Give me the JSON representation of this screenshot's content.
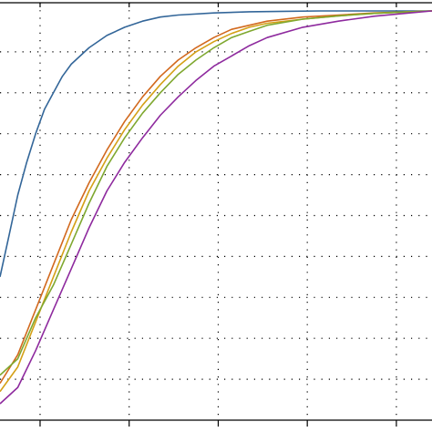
{
  "chart_data": {
    "type": "line",
    "title": "",
    "xlabel": "",
    "ylabel": "",
    "grid": true,
    "grid_style": "dotted",
    "xlim": [
      0,
      4.85
    ],
    "ylim": [
      0,
      1.02
    ],
    "x_ticks": [
      0.45,
      1.45,
      2.45,
      3.45,
      4.45
    ],
    "y_ticks": [
      0.1,
      0.2,
      0.3,
      0.4,
      0.5,
      0.6,
      0.7,
      0.8,
      0.9
    ],
    "series": [
      {
        "color": "#336699",
        "x": [
          0,
          0.1,
          0.2,
          0.3,
          0.4,
          0.5,
          0.6,
          0.7,
          0.8,
          1.0,
          1.2,
          1.4,
          1.6,
          1.8,
          2.0,
          2.4,
          2.8,
          3.2,
          3.6,
          4.0,
          4.5,
          4.85
        ],
        "y": [
          0.35,
          0.45,
          0.55,
          0.63,
          0.7,
          0.76,
          0.8,
          0.84,
          0.87,
          0.91,
          0.94,
          0.96,
          0.975,
          0.985,
          0.99,
          0.995,
          0.998,
          0.999,
          1.0,
          1.0,
          1.0,
          1.0
        ]
      },
      {
        "color": "#d2691e",
        "x": [
          0,
          0.2,
          0.4,
          0.6,
          0.8,
          1.0,
          1.2,
          1.4,
          1.6,
          1.8,
          2.0,
          2.2,
          2.4,
          2.6,
          2.8,
          3.0,
          3.4,
          3.8,
          4.2,
          4.6,
          4.85
        ],
        "y": [
          0.09,
          0.16,
          0.27,
          0.38,
          0.49,
          0.58,
          0.66,
          0.73,
          0.79,
          0.84,
          0.88,
          0.91,
          0.935,
          0.955,
          0.965,
          0.975,
          0.985,
          0.99,
          0.995,
          0.998,
          1.0
        ]
      },
      {
        "color": "#d4a017",
        "x": [
          0,
          0.2,
          0.4,
          0.6,
          0.8,
          1.0,
          1.2,
          1.4,
          1.6,
          1.8,
          2.0,
          2.2,
          2.4,
          2.6,
          2.8,
          3.0,
          3.4,
          3.8,
          4.2,
          4.6,
          4.85
        ],
        "y": [
          0.07,
          0.13,
          0.24,
          0.35,
          0.46,
          0.56,
          0.64,
          0.71,
          0.77,
          0.82,
          0.865,
          0.9,
          0.925,
          0.945,
          0.96,
          0.97,
          0.98,
          0.988,
          0.994,
          0.998,
          1.0
        ]
      },
      {
        "color": "#7fa830",
        "x": [
          0,
          0.2,
          0.4,
          0.6,
          0.8,
          1.0,
          1.2,
          1.4,
          1.6,
          1.8,
          2.0,
          2.2,
          2.4,
          2.6,
          2.8,
          3.0,
          3.4,
          3.8,
          4.2,
          4.6,
          4.85
        ],
        "y": [
          0.11,
          0.15,
          0.25,
          0.33,
          0.43,
          0.53,
          0.62,
          0.69,
          0.75,
          0.8,
          0.845,
          0.88,
          0.91,
          0.935,
          0.95,
          0.965,
          0.98,
          0.988,
          0.994,
          0.998,
          1.0
        ]
      },
      {
        "color": "#8e2a9e",
        "x": [
          0,
          0.2,
          0.4,
          0.6,
          0.8,
          1.0,
          1.2,
          1.4,
          1.6,
          1.8,
          2.0,
          2.2,
          2.4,
          2.6,
          2.8,
          3.0,
          3.4,
          3.8,
          4.2,
          4.6,
          4.85
        ],
        "y": [
          0.04,
          0.08,
          0.17,
          0.27,
          0.37,
          0.47,
          0.56,
          0.63,
          0.69,
          0.745,
          0.79,
          0.83,
          0.865,
          0.89,
          0.915,
          0.935,
          0.96,
          0.975,
          0.987,
          0.995,
          1.0
        ]
      }
    ]
  }
}
